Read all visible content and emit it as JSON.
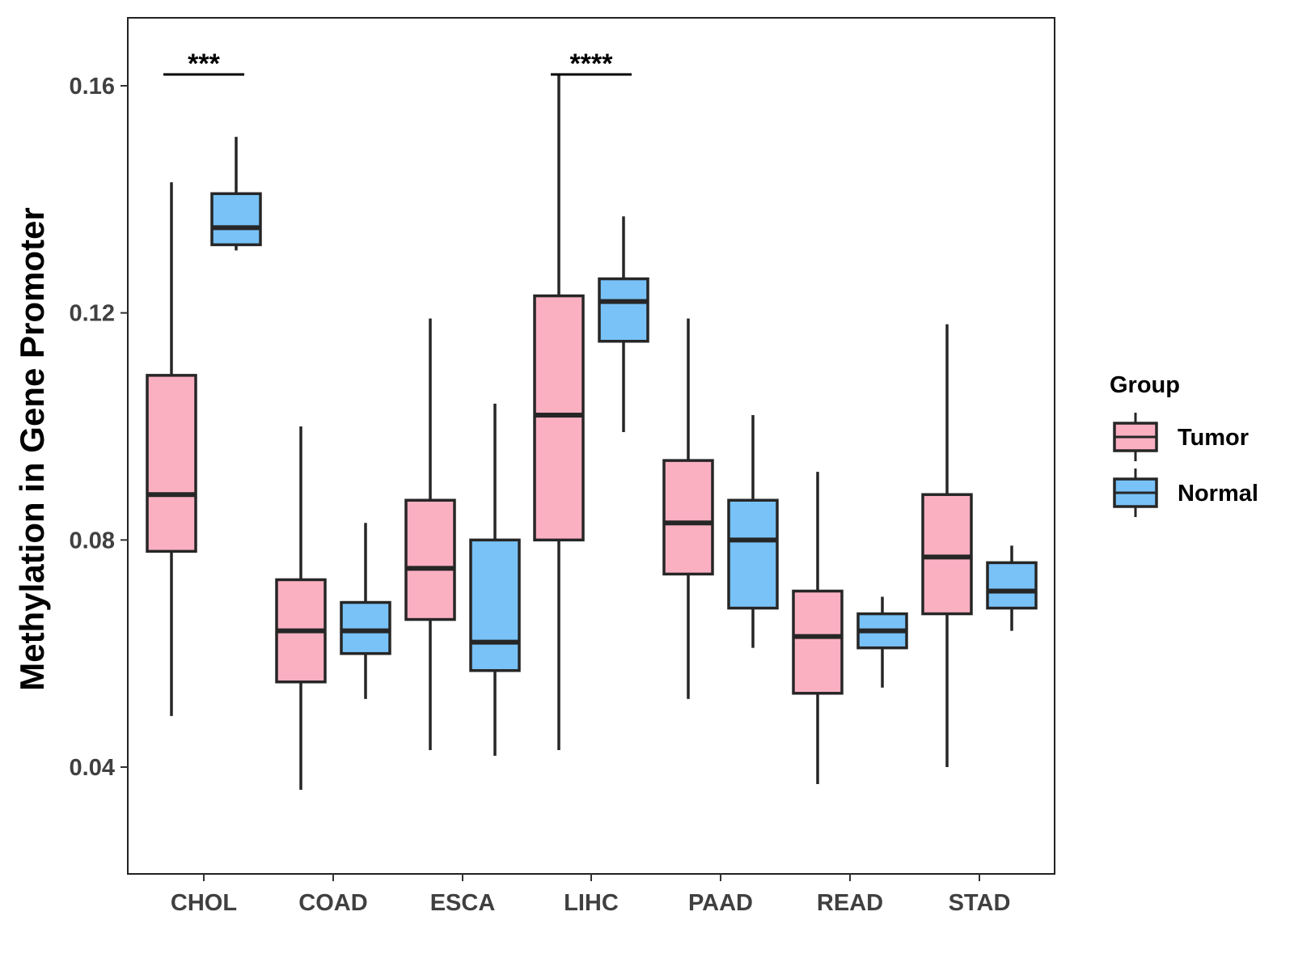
{
  "chart_data": {
    "type": "boxplot",
    "title": "",
    "xlabel": "",
    "ylabel": "Methylation in Gene Promoter",
    "ylim": [
      0.022,
      0.172
    ],
    "yticks": [
      0.04,
      0.08,
      0.12,
      0.16
    ],
    "ytick_labels": [
      "0.04",
      "0.08",
      "0.12",
      "0.16"
    ],
    "categories": [
      "CHOL",
      "COAD",
      "ESCA",
      "LIHC",
      "PAAD",
      "READ",
      "STAD"
    ],
    "legend": {
      "title": "Group",
      "position": "right",
      "entries": [
        {
          "name": "Tumor",
          "color": "#FBB0C2"
        },
        {
          "name": "Normal",
          "color": "#78C2F8"
        }
      ]
    },
    "series": [
      {
        "name": "Tumor",
        "color": "#FBB0C2",
        "boxes": [
          {
            "category": "CHOL",
            "whisker_low": 0.049,
            "q1": 0.078,
            "median": 0.088,
            "q3": 0.109,
            "whisker_high": 0.143
          },
          {
            "category": "COAD",
            "whisker_low": 0.036,
            "q1": 0.055,
            "median": 0.064,
            "q3": 0.073,
            "whisker_high": 0.1
          },
          {
            "category": "ESCA",
            "whisker_low": 0.043,
            "q1": 0.066,
            "median": 0.075,
            "q3": 0.087,
            "whisker_high": 0.119
          },
          {
            "category": "LIHC",
            "whisker_low": 0.043,
            "q1": 0.08,
            "median": 0.102,
            "q3": 0.123,
            "whisker_high": 0.162
          },
          {
            "category": "PAAD",
            "whisker_low": 0.052,
            "q1": 0.074,
            "median": 0.083,
            "q3": 0.094,
            "whisker_high": 0.119
          },
          {
            "category": "READ",
            "whisker_low": 0.037,
            "q1": 0.053,
            "median": 0.063,
            "q3": 0.071,
            "whisker_high": 0.092
          },
          {
            "category": "STAD",
            "whisker_low": 0.04,
            "q1": 0.067,
            "median": 0.077,
            "q3": 0.088,
            "whisker_high": 0.118
          }
        ]
      },
      {
        "name": "Normal",
        "color": "#78C2F8",
        "boxes": [
          {
            "category": "CHOL",
            "whisker_low": 0.131,
            "q1": 0.132,
            "median": 0.135,
            "q3": 0.141,
            "whisker_high": 0.151
          },
          {
            "category": "COAD",
            "whisker_low": 0.052,
            "q1": 0.06,
            "median": 0.064,
            "q3": 0.069,
            "whisker_high": 0.083
          },
          {
            "category": "ESCA",
            "whisker_low": 0.042,
            "q1": 0.057,
            "median": 0.062,
            "q3": 0.08,
            "whisker_high": 0.104
          },
          {
            "category": "LIHC",
            "whisker_low": 0.099,
            "q1": 0.115,
            "median": 0.122,
            "q3": 0.126,
            "whisker_high": 0.137
          },
          {
            "category": "PAAD",
            "whisker_low": 0.061,
            "q1": 0.068,
            "median": 0.08,
            "q3": 0.087,
            "whisker_high": 0.102
          },
          {
            "category": "READ",
            "whisker_low": 0.054,
            "q1": 0.061,
            "median": 0.064,
            "q3": 0.067,
            "whisker_high": 0.07
          },
          {
            "category": "STAD",
            "whisker_low": 0.064,
            "q1": 0.068,
            "median": 0.071,
            "q3": 0.076,
            "whisker_high": 0.079
          }
        ]
      }
    ],
    "annotations": [
      {
        "category": "CHOL",
        "label": "***",
        "y": 0.162
      },
      {
        "category": "LIHC",
        "label": "****",
        "y": 0.162
      }
    ]
  },
  "colors": {
    "panel_border": "#222222",
    "box_stroke": "#262626",
    "tick_text": "#404040"
  }
}
